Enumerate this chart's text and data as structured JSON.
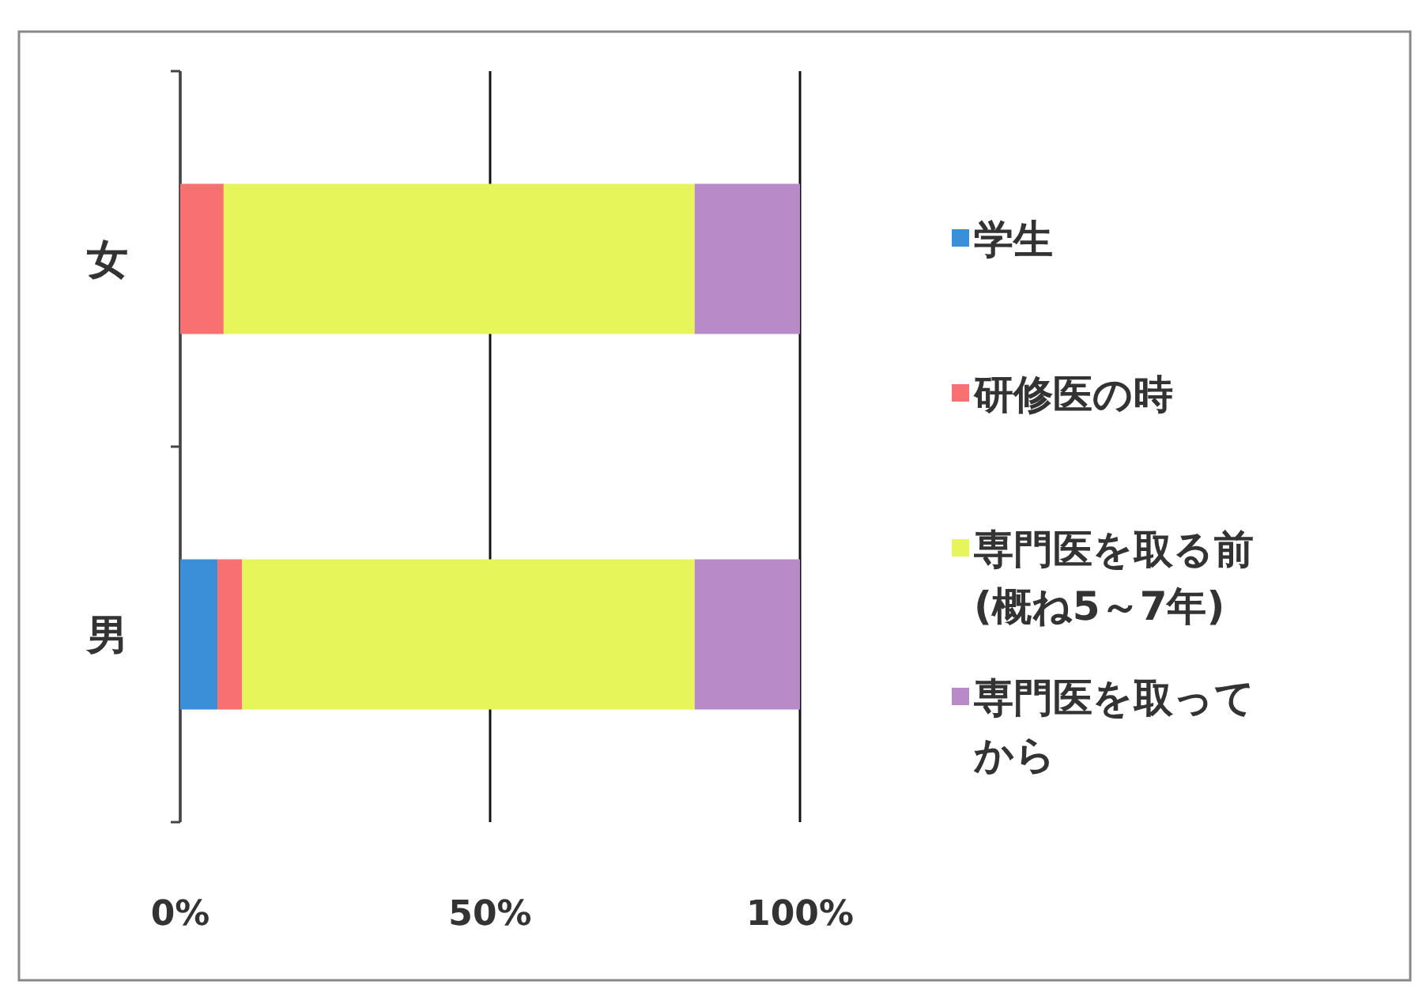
{
  "chart_data": {
    "type": "bar",
    "orientation": "horizontal",
    "stacked": true,
    "categories": [
      "女",
      "男"
    ],
    "series": [
      {
        "name": "学生",
        "color": "#3a8fd8",
        "values": [
          0,
          6
        ]
      },
      {
        "name": "研修医の時",
        "color": "#f87171",
        "values": [
          7,
          4
        ]
      },
      {
        "name": "専門医を取る前(概ね5～7年)",
        "color": "#e6f55a",
        "values": [
          76,
          73
        ]
      },
      {
        "name": "専門医を取ってから",
        "color": "#b98ac8",
        "values": [
          17,
          17
        ]
      }
    ],
    "xlim": [
      0,
      100
    ],
    "xticks": [
      {
        "value": 0,
        "label": "0%"
      },
      {
        "value": 50,
        "label": "50%"
      },
      {
        "value": 100,
        "label": "100%"
      }
    ],
    "grid": "x",
    "legend": "right"
  }
}
